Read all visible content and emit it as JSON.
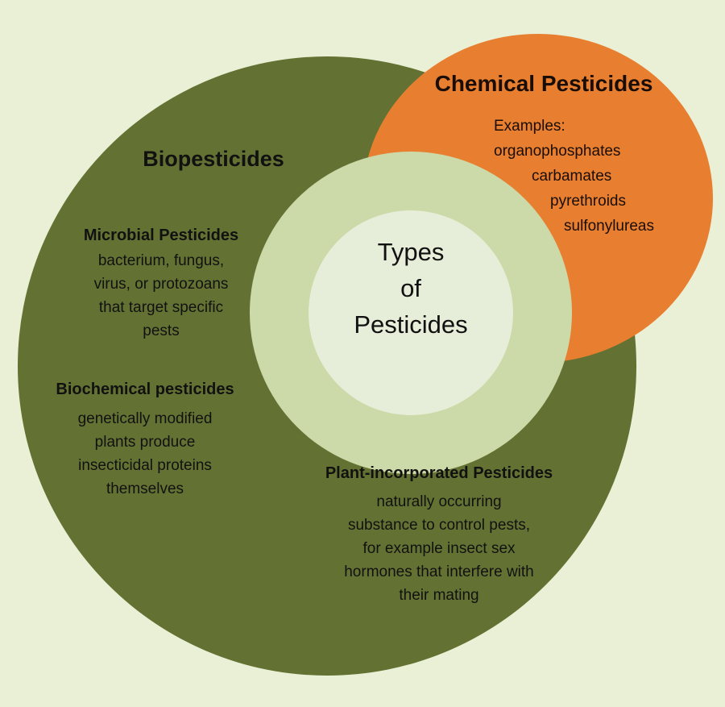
{
  "center": {
    "title": "Types\nof\nPesticides"
  },
  "biopesticides": {
    "title": "Biopesticides",
    "microbial": {
      "heading": "Microbial Pesticides",
      "body": "bacterium, fungus,\nvirus, or protozoans\nthat target specific\npests"
    },
    "biochemical": {
      "heading": "Biochemical pesticides",
      "body": "genetically modified\nplants produce\ninsecticidal proteins\nthemselves"
    },
    "plant_incorporated": {
      "heading": "Plant-incorporated Pesticides",
      "body": "naturally occurring\nsubstance to control pests,\nfor example insect sex\nhormones that interfere with\ntheir mating"
    }
  },
  "chemical": {
    "title": "Chemical Pesticides",
    "examples_label": "Examples:",
    "examples": [
      "organophosphates",
      "carbamates",
      "pyrethroids",
      "sulfonylureas"
    ]
  },
  "colors": {
    "background": "#e9f0d6",
    "biopesticides_circle": "#637233",
    "chemical_circle": "#e87f30",
    "inner_ring": "#ccd9a8",
    "center_disc": "#e6edd8"
  }
}
